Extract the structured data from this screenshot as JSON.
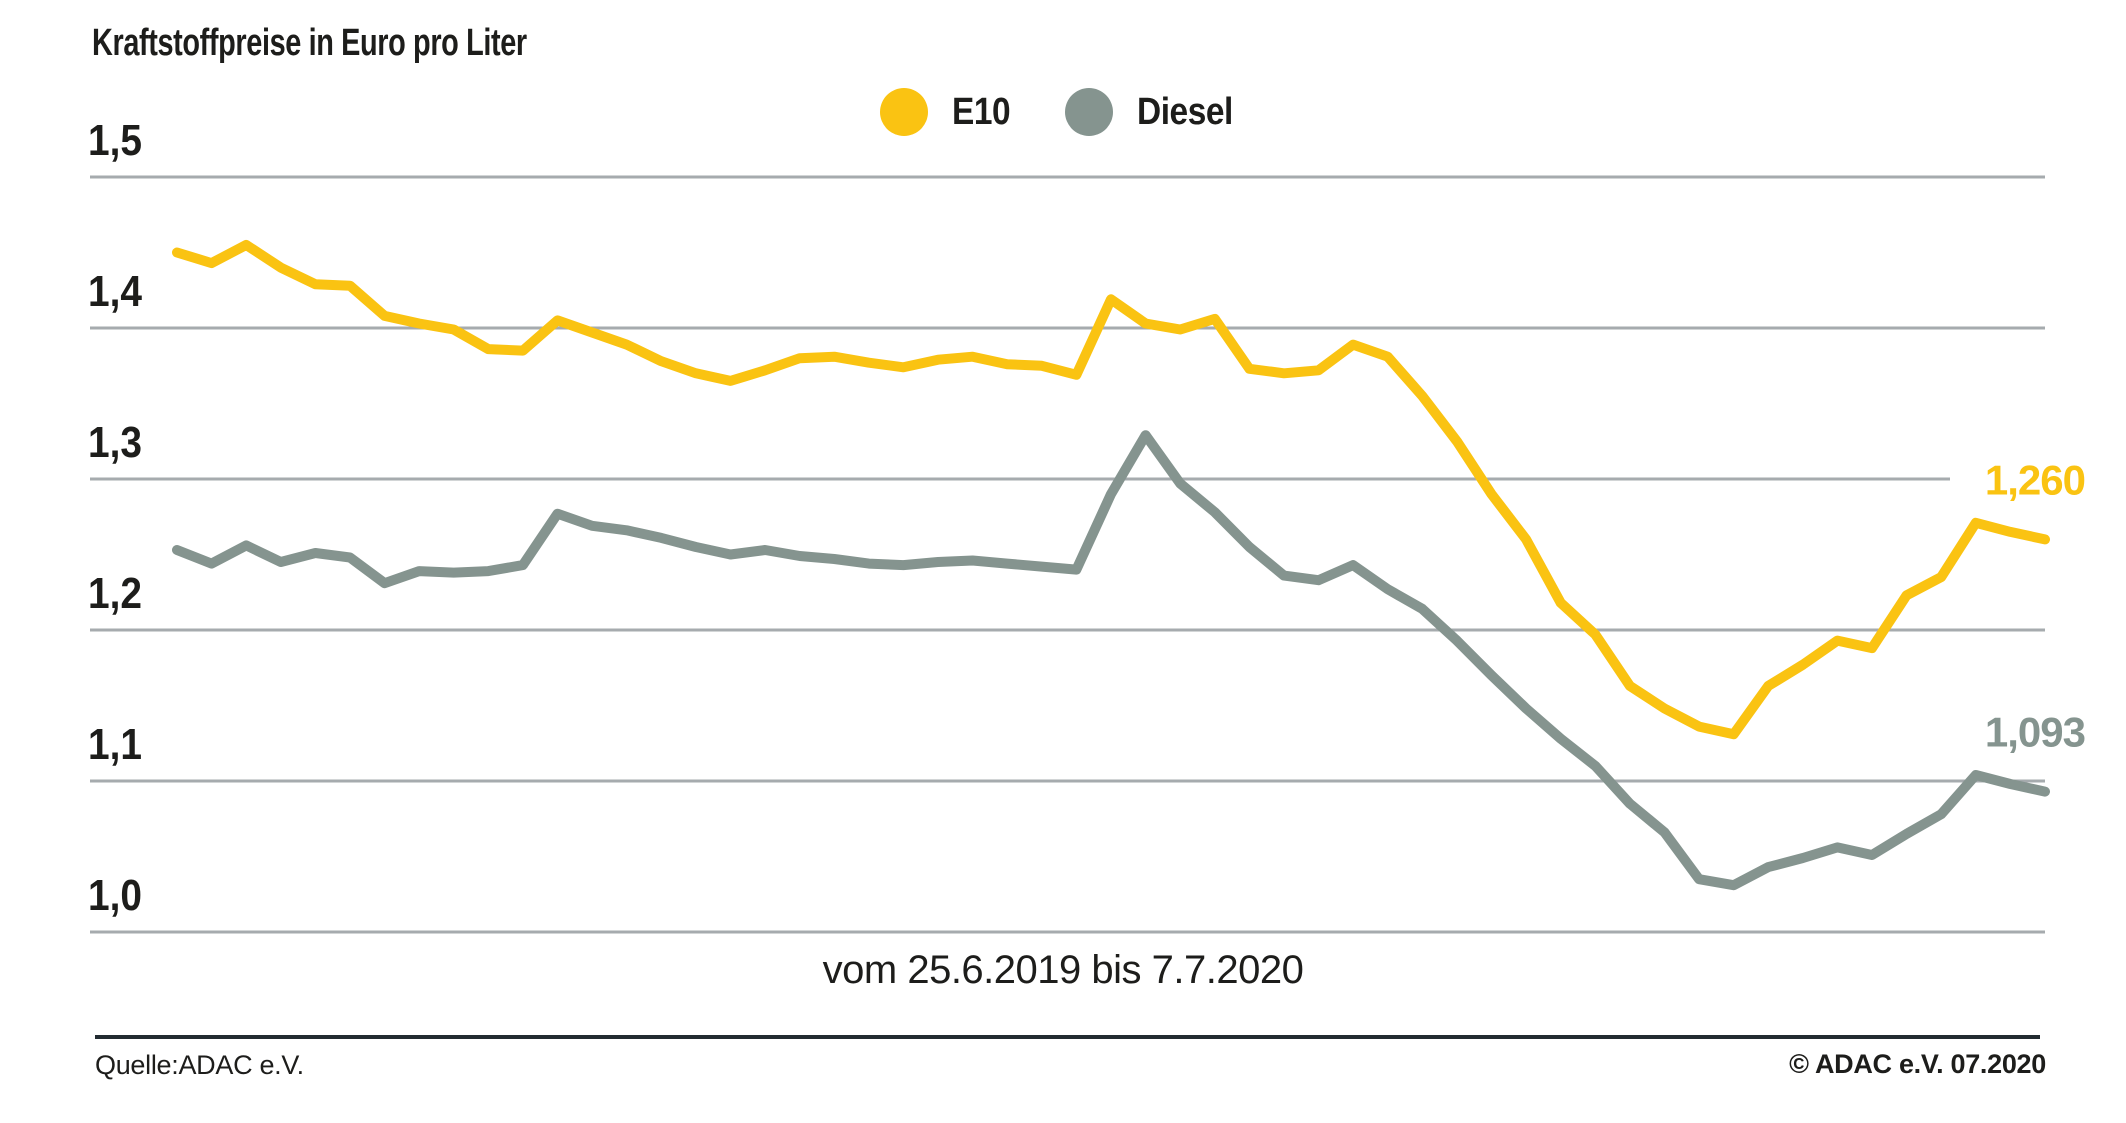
{
  "title": "Kraftstoffpreise in Euro pro Liter",
  "caption": "vom 25.6.2019 bis 7.7.2020",
  "footer": {
    "source": "Quelle:ADAC e.V.",
    "copyright": "© ADAC e.V. 07.2020"
  },
  "colors": {
    "e10": "#FAC312",
    "diesel": "#85948F",
    "gridline": "#A6ABAE",
    "text": "#1D1D1B",
    "footer_rule": "#222B31"
  },
  "chart_data": {
    "type": "line",
    "title": "Kraftstoffpreise in Euro pro Liter",
    "x_range": [
      "25.6.2019",
      "7.7.2020"
    ],
    "x_unit": "week",
    "ylim": [
      1.0,
      1.5
    ],
    "grid": "horizontal-only",
    "legend_position": "top-center",
    "yticks": [
      {
        "value": 1.5,
        "label": "1,5"
      },
      {
        "value": 1.4,
        "label": "1,4"
      },
      {
        "value": 1.3,
        "label": "1,3"
      },
      {
        "value": 1.2,
        "label": "1,2"
      },
      {
        "value": 1.1,
        "label": "1,1"
      },
      {
        "value": 1.0,
        "label": "1,0"
      }
    ],
    "series": [
      {
        "name": "E10",
        "color": "#FAC312",
        "end_label": "1,260",
        "end_value": 1.26,
        "values": [
          1.45,
          1.443,
          1.455,
          1.44,
          1.429,
          1.428,
          1.408,
          1.403,
          1.399,
          1.386,
          1.385,
          1.405,
          1.397,
          1.389,
          1.378,
          1.37,
          1.365,
          1.372,
          1.38,
          1.381,
          1.377,
          1.374,
          1.379,
          1.381,
          1.376,
          1.375,
          1.369,
          1.419,
          1.403,
          1.399,
          1.406,
          1.373,
          1.37,
          1.372,
          1.389,
          1.381,
          1.355,
          1.325,
          1.29,
          1.26,
          1.218,
          1.197,
          1.163,
          1.148,
          1.136,
          1.131,
          1.163,
          1.177,
          1.193,
          1.188,
          1.223,
          1.235,
          1.271,
          1.265,
          1.26
        ]
      },
      {
        "name": "Diesel",
        "color": "#85948F",
        "end_label": "1,093",
        "end_value": 1.093,
        "values": [
          1.253,
          1.244,
          1.256,
          1.245,
          1.251,
          1.248,
          1.231,
          1.239,
          1.238,
          1.239,
          1.243,
          1.277,
          1.269,
          1.266,
          1.261,
          1.255,
          1.25,
          1.253,
          1.249,
          1.247,
          1.244,
          1.243,
          1.245,
          1.246,
          1.244,
          1.242,
          1.24,
          1.29,
          1.329,
          1.297,
          1.278,
          1.255,
          1.236,
          1.233,
          1.243,
          1.227,
          1.214,
          1.193,
          1.17,
          1.148,
          1.128,
          1.11,
          1.085,
          1.066,
          1.035,
          1.031,
          1.043,
          1.049,
          1.056,
          1.051,
          1.065,
          1.078,
          1.104,
          1.098,
          1.093
        ]
      }
    ]
  }
}
